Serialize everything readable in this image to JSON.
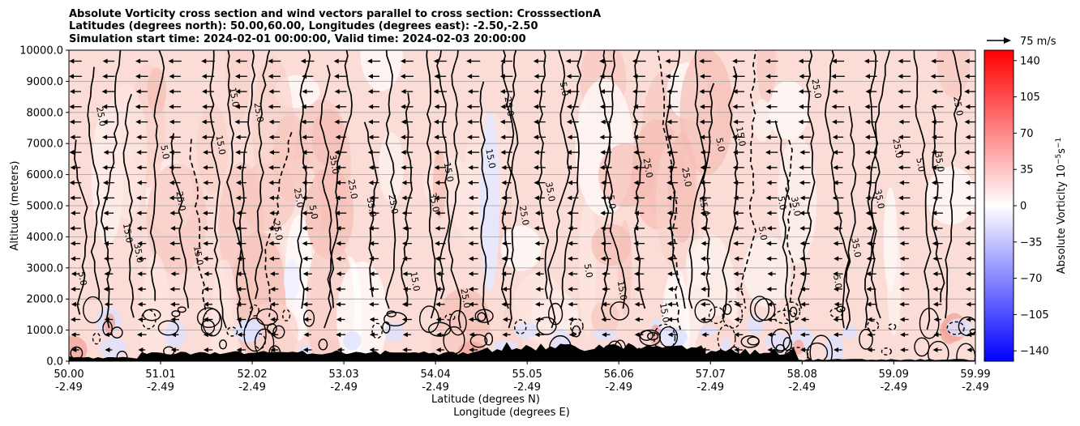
{
  "chart_data": {
    "type": "heatmap",
    "title_lines": [
      "Absolute Vorticity cross section and wind vectors parallel to cross section: CrosssectionA",
      "Latitudes (degrees north): 50.00,60.00, Longitudes (degrees east): -2.50,-2.50",
      "Simulation start time: 2024-02-01 00:00:00, Valid time: 2024-02-03 20:00:00"
    ],
    "xlabel_lines": [
      "Latitude (degrees N)",
      "Longitude (degrees E)"
    ],
    "ylabel": "Altitude (meters)",
    "x_ticks": [
      {
        "lat": "50.00",
        "lon": "-2.49"
      },
      {
        "lat": "51.01",
        "lon": "-2.49"
      },
      {
        "lat": "52.02",
        "lon": "-2.49"
      },
      {
        "lat": "53.03",
        "lon": "-2.49"
      },
      {
        "lat": "54.04",
        "lon": "-2.49"
      },
      {
        "lat": "55.05",
        "lon": "-2.49"
      },
      {
        "lat": "56.06",
        "lon": "-2.49"
      },
      {
        "lat": "57.07",
        "lon": "-2.49"
      },
      {
        "lat": "58.08",
        "lon": "-2.49"
      },
      {
        "lat": "59.09",
        "lon": "-2.49"
      },
      {
        "lat": "59.99",
        "lon": "-2.49"
      }
    ],
    "x_range": [
      50.0,
      59.99
    ],
    "y_ticks": [
      "0.0",
      "1000.0",
      "2000.0",
      "3000.0",
      "4000.0",
      "5000.0",
      "6000.0",
      "7000.0",
      "8000.0",
      "9000.0",
      "10000.0"
    ],
    "y_range": [
      0,
      10000
    ],
    "grid": "horizontal",
    "colorbar": {
      "label": "Absolute Vorticity 10",
      "label_sup": "−5",
      "label_unit": "s",
      "label_unit_sup": "−1",
      "ticks": [
        "140",
        "105",
        "70",
        "35",
        "0",
        "−35",
        "−70",
        "−105",
        "−140"
      ],
      "range": [
        -150,
        150
      ],
      "colors": [
        "#0000ff",
        "#ffffff",
        "#ff0000"
      ]
    },
    "quiver_key": "75 m/s",
    "contour_levels": [
      "-15.0",
      "-5.0",
      "5.0",
      "15.0",
      "25.0",
      "35.0"
    ],
    "contour_labels_sample": [
      "5.0",
      "15.0",
      "25.0",
      "35.0",
      "-5.0",
      "-15.0"
    ],
    "wind_direction": "towards decreasing latitude (left)",
    "terrain_color": "#000000"
  }
}
